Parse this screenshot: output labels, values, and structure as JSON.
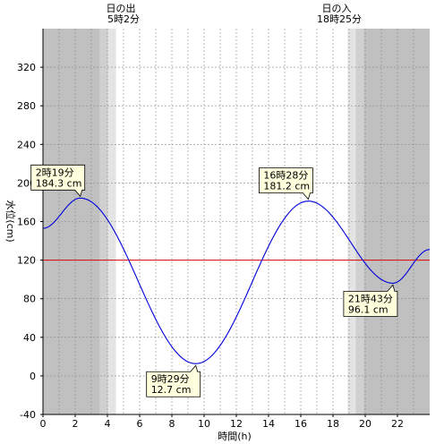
{
  "chart_data": {
    "type": "line",
    "xlabel": "時間(h)",
    "ylabel": "水位(cm)",
    "xlim": [
      0,
      24
    ],
    "ylim": [
      -40,
      360
    ],
    "xticks": [
      0,
      2,
      4,
      6,
      8,
      10,
      12,
      14,
      16,
      18,
      20,
      22
    ],
    "yticks": [
      -40,
      0,
      40,
      80,
      120,
      160,
      200,
      240,
      280,
      320
    ],
    "reference_level": 120,
    "series": [
      {
        "color": "#0000dd",
        "x": [
          0,
          2.3167,
          9.4833,
          16.4667,
          21.7167,
          24
        ],
        "y": [
          153,
          184.3,
          12.7,
          181.2,
          96.1,
          131
        ]
      }
    ],
    "extremes": [
      {
        "time": "2時19分",
        "level": "184.3 cm",
        "x": 2.3167,
        "y": 184.3
      },
      {
        "time": "9時29分",
        "level": "12.7 cm",
        "x": 9.4833,
        "y": 12.7
      },
      {
        "time": "16時28分",
        "level": "181.2 cm",
        "x": 16.4667,
        "y": 181.2
      },
      {
        "time": "21時43分",
        "level": "96.1 cm",
        "x": 21.7167,
        "y": 96.1
      }
    ],
    "sunrise": {
      "title": "日の出",
      "time": "5時2分",
      "x": 5.0333
    },
    "sunset": {
      "title": "日の入",
      "time": "18時25分",
      "x": 18.4167
    },
    "colors": {
      "night": "#c0c0c0",
      "twilight_1": "#d0d0d0",
      "twilight_2": "#e4e4e4",
      "day": "#ffffff",
      "line": "#0000dd",
      "reference": "#e00000",
      "callout_fill": "#ffffdd"
    }
  }
}
